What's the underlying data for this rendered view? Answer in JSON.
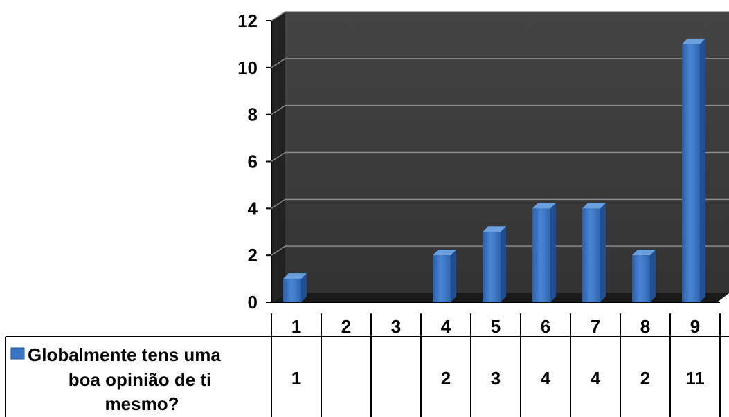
{
  "chart_data": {
    "type": "bar",
    "categories": [
      "1",
      "2",
      "3",
      "4",
      "5",
      "6",
      "7",
      "8",
      "9"
    ],
    "series": [
      {
        "name": "Globalmente tens uma boa opinião de ti mesmo?",
        "values": [
          1,
          null,
          null,
          2,
          3,
          4,
          4,
          2,
          11
        ],
        "table_labels": [
          "1",
          "",
          "",
          "2",
          "3",
          "4",
          "4",
          "2",
          "11"
        ]
      }
    ],
    "ylim": [
      0,
      12
    ],
    "yticks": [
      "0",
      "2",
      "4",
      "6",
      "8",
      "10",
      "12"
    ],
    "grid": true,
    "data_table": true,
    "colors": {
      "bar": "#3a74c4",
      "bar_top": "#6a9fe0",
      "bar_side": "#1f4f8f",
      "back_wall": "#3c3c3c",
      "side_wall": "#222222",
      "floor": "#1a1a1a",
      "gridline": "#8a8a8a",
      "legend_key": "#3a74c4"
    }
  }
}
